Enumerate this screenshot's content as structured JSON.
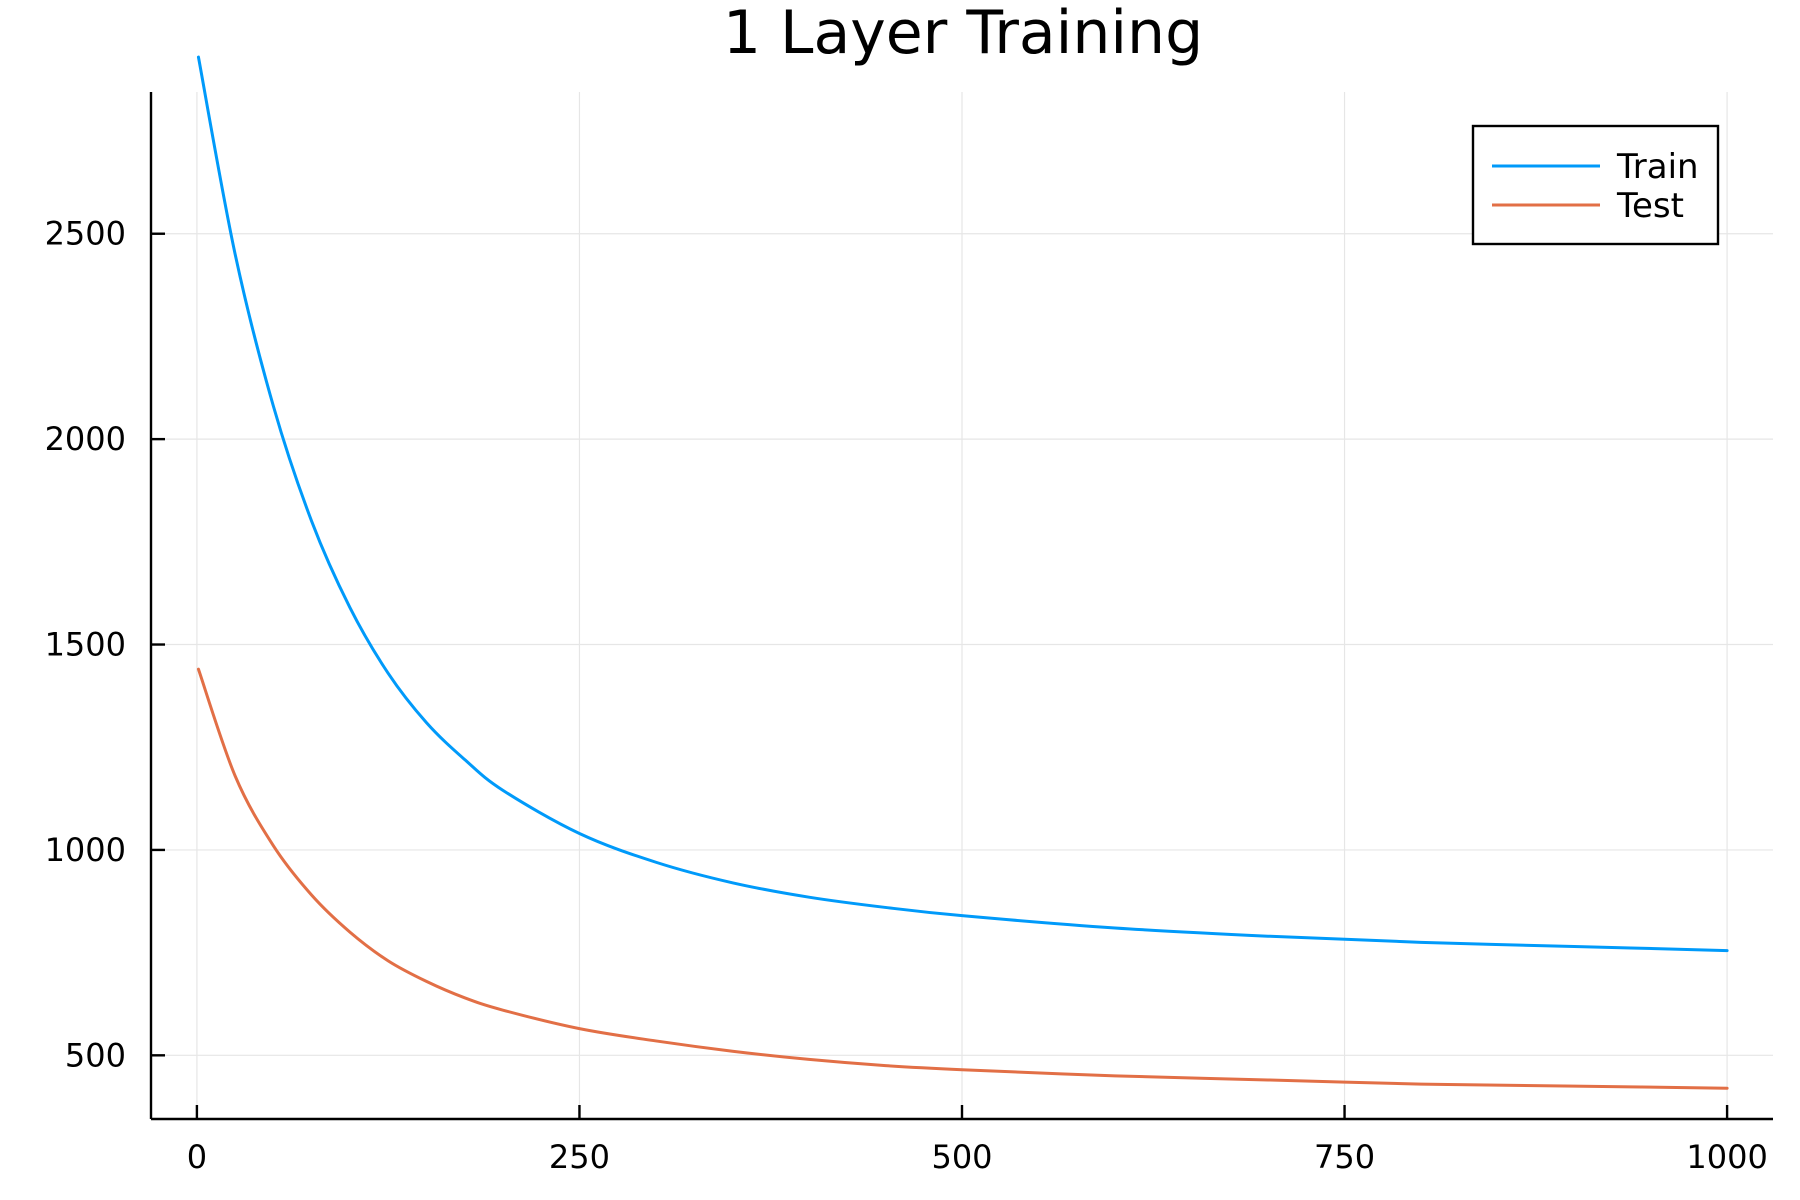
{
  "chart_data": {
    "type": "line",
    "title": "1 Layer Training",
    "xlabel": "",
    "ylabel": "",
    "xlim": [
      -30,
      1030
    ],
    "ylim": [
      345,
      2845
    ],
    "xticks": [
      0,
      250,
      500,
      750,
      1000
    ],
    "yticks": [
      500,
      1000,
      1500,
      2000,
      2500
    ],
    "xtick_labels": [
      "0",
      "250",
      "500",
      "750",
      "1000"
    ],
    "ytick_labels": [
      "500",
      "1000",
      "1500",
      "2000",
      "2500"
    ],
    "grid": true,
    "legend_position": "top-right",
    "x": [
      1,
      25,
      50,
      75,
      100,
      125,
      150,
      175,
      200,
      250,
      300,
      350,
      400,
      450,
      500,
      600,
      700,
      800,
      900,
      1000
    ],
    "series": [
      {
        "name": "Train",
        "color": "#009AFA",
        "values": [
          2930,
          2450,
          2080,
          1800,
          1590,
          1430,
          1310,
          1220,
          1145,
          1040,
          970,
          920,
          885,
          860,
          840,
          810,
          790,
          775,
          765,
          755
        ]
      },
      {
        "name": "Test",
        "color": "#E26F46",
        "values": [
          1440,
          1180,
          1010,
          890,
          800,
          730,
          680,
          640,
          610,
          565,
          535,
          510,
          490,
          475,
          465,
          450,
          440,
          430,
          425,
          420
        ]
      }
    ]
  }
}
